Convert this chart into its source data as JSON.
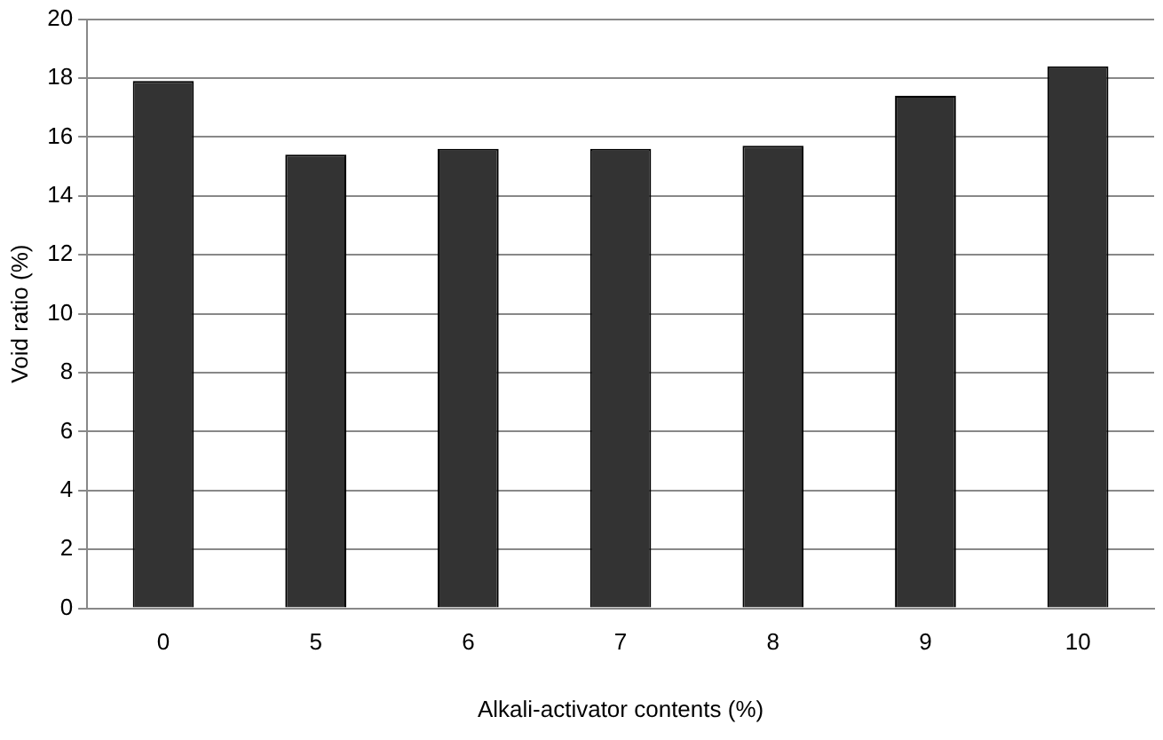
{
  "chart_data": {
    "type": "bar",
    "xlabel": "Alkali-activator contents (%)",
    "ylabel": "Void ratio (%)",
    "categories": [
      "0",
      "5",
      "6",
      "7",
      "8",
      "9",
      "10"
    ],
    "values": [
      17.9,
      15.4,
      15.6,
      15.6,
      15.7,
      17.4,
      18.4
    ],
    "color": "#333333",
    "ylim": [
      0,
      20
    ],
    "yticks": [
      0,
      2,
      4,
      6,
      8,
      10,
      12,
      14,
      16,
      18,
      20
    ],
    "grid": "y"
  }
}
